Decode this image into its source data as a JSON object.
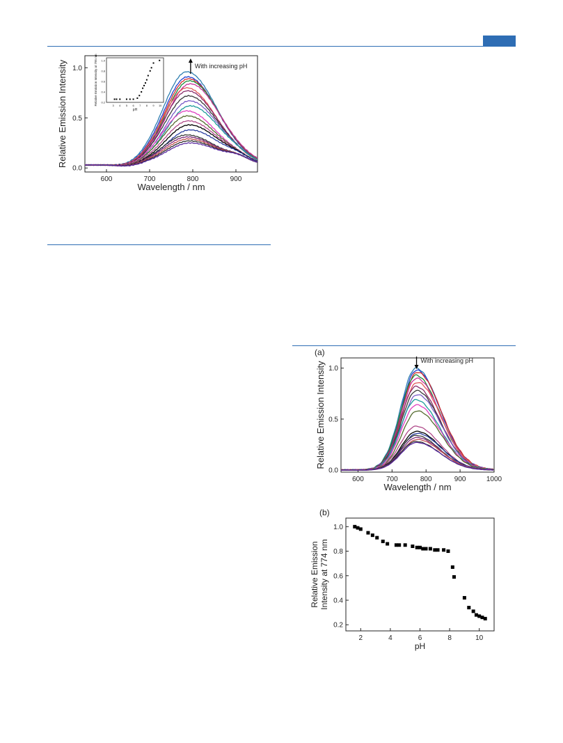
{
  "colors": {
    "accent": "#2e6db4",
    "spectra": [
      "#2f7fb0",
      "#1f3fd0",
      "#d42c2c",
      "#1e8a3a",
      "#c8329a",
      "#e25a5a",
      "#8a2c6a",
      "#3a3a3a",
      "#7a5cc8",
      "#1a9a9a",
      "#e040c0",
      "#556b2f",
      "#b04a8a",
      "#000000",
      "#2a3fa0",
      "#3a3a3a",
      "#7f2a7a",
      "#c05050",
      "#303030",
      "#5a2aa0"
    ]
  },
  "chart_data": [
    {
      "id": "fig1",
      "type": "line",
      "xlabel": "Wavelength / nm",
      "ylabel": "Relative Emission Intensity",
      "xlim": [
        550,
        950
      ],
      "ylim": [
        -0.04,
        1.12
      ],
      "xticks": [
        {
          "v": 600,
          "label": "600"
        },
        {
          "v": 700,
          "label": "700"
        },
        {
          "v": 800,
          "label": "800"
        },
        {
          "v": 900,
          "label": "900"
        }
      ],
      "yticks": [
        {
          "v": 0.0,
          "label": "0.0"
        },
        {
          "v": 0.5,
          "label": "0.5"
        },
        {
          "v": 1.0,
          "label": "1.0"
        }
      ],
      "annotation": "With increasing pH",
      "arrow_direction": "up",
      "arrow_x": 795,
      "peak_nm": 790,
      "series_peaks": [
        0.96,
        0.91,
        0.89,
        0.87,
        0.84,
        0.8,
        0.77,
        0.72,
        0.67,
        0.62,
        0.57,
        0.52,
        0.47,
        0.43,
        0.38,
        0.33,
        0.31,
        0.29,
        0.27,
        0.25
      ],
      "inset": {
        "type": "scatter",
        "xlabel": "pH",
        "ylabel": "Relative Emission Intensity at 795 nm",
        "xlim": [
          2,
          10.5
        ],
        "ylim": [
          0.2,
          1.05
        ],
        "xticks": [
          {
            "v": 3,
            "label": "3"
          },
          {
            "v": 4,
            "label": "4"
          },
          {
            "v": 5,
            "label": "5"
          },
          {
            "v": 6,
            "label": "6"
          },
          {
            "v": 7,
            "label": "7"
          },
          {
            "v": 8,
            "label": "8"
          },
          {
            "v": 9,
            "label": "9"
          },
          {
            "v": 10,
            "label": "10"
          }
        ],
        "yticks": [
          {
            "v": 0.2,
            "label": "0.2"
          },
          {
            "v": 0.4,
            "label": "0.4"
          },
          {
            "v": 0.6,
            "label": "0.6"
          },
          {
            "v": 0.8,
            "label": "0.8"
          },
          {
            "v": 1.0,
            "label": "1.0"
          }
        ],
        "x": [
          3.2,
          3.5,
          4.0,
          5.0,
          5.5,
          6.0,
          6.6,
          6.9,
          7.2,
          7.4,
          7.6,
          7.8,
          8.0,
          8.2,
          8.5,
          8.7,
          9.0,
          9.9
        ],
        "y": [
          0.26,
          0.26,
          0.26,
          0.26,
          0.26,
          0.26,
          0.28,
          0.33,
          0.4,
          0.47,
          0.52,
          0.57,
          0.63,
          0.71,
          0.8,
          0.86,
          0.95,
          1.0
        ]
      }
    },
    {
      "id": "fig2a",
      "type": "line",
      "panel_label": "(a)",
      "xlabel": "Wavelength / nm",
      "ylabel": "Relative Emission Intensity",
      "xlim": [
        550,
        1000
      ],
      "ylim": [
        -0.02,
        1.1
      ],
      "xticks": [
        {
          "v": 600,
          "label": "600"
        },
        {
          "v": 700,
          "label": "700"
        },
        {
          "v": 800,
          "label": "800"
        },
        {
          "v": 900,
          "label": "900"
        },
        {
          "v": 1000,
          "label": "1000"
        }
      ],
      "yticks": [
        {
          "v": 0.0,
          "label": "0.0"
        },
        {
          "v": 0.5,
          "label": "0.5"
        },
        {
          "v": 1.0,
          "label": "1.0"
        }
      ],
      "annotation": "With increasing pH",
      "arrow_direction": "down",
      "arrow_x": 772,
      "peak_nm": 772,
      "series_peaks": [
        1.0,
        0.98,
        0.96,
        0.93,
        0.9,
        0.86,
        0.82,
        0.78,
        0.74,
        0.69,
        0.64,
        0.58,
        0.43,
        0.38,
        0.36,
        0.34,
        0.32,
        0.3,
        0.28,
        0.27
      ]
    },
    {
      "id": "fig2b",
      "type": "scatter",
      "panel_label": "(b)",
      "xlabel": "pH",
      "ylabel_lines": [
        "Relative Emission",
        "Intensity at 774 nm"
      ],
      "xlim": [
        1.0,
        11.0
      ],
      "ylim": [
        0.15,
        1.07
      ],
      "xticks": [
        {
          "v": 2,
          "label": "2"
        },
        {
          "v": 4,
          "label": "4"
        },
        {
          "v": 6,
          "label": "6"
        },
        {
          "v": 8,
          "label": "8"
        },
        {
          "v": 10,
          "label": "10"
        }
      ],
      "yticks": [
        {
          "v": 0.2,
          "label": "0.2"
        },
        {
          "v": 0.4,
          "label": "0.4"
        },
        {
          "v": 0.6,
          "label": "0.6"
        },
        {
          "v": 0.8,
          "label": "0.8"
        },
        {
          "v": 1.0,
          "label": "1.0"
        }
      ],
      "x": [
        1.6,
        1.8,
        2.0,
        2.5,
        2.8,
        3.1,
        3.5,
        3.8,
        4.4,
        4.6,
        5.0,
        5.5,
        5.8,
        6.0,
        6.2,
        6.4,
        6.7,
        7.0,
        7.2,
        7.6,
        7.9,
        8.2,
        8.3,
        9.0,
        9.3,
        9.6,
        9.8,
        10.0,
        10.2,
        10.4
      ],
      "y": [
        1.0,
        0.99,
        0.98,
        0.95,
        0.93,
        0.91,
        0.88,
        0.86,
        0.85,
        0.85,
        0.85,
        0.84,
        0.83,
        0.83,
        0.82,
        0.82,
        0.82,
        0.81,
        0.81,
        0.81,
        0.8,
        0.67,
        0.59,
        0.42,
        0.34,
        0.31,
        0.28,
        0.27,
        0.26,
        0.25
      ]
    }
  ]
}
